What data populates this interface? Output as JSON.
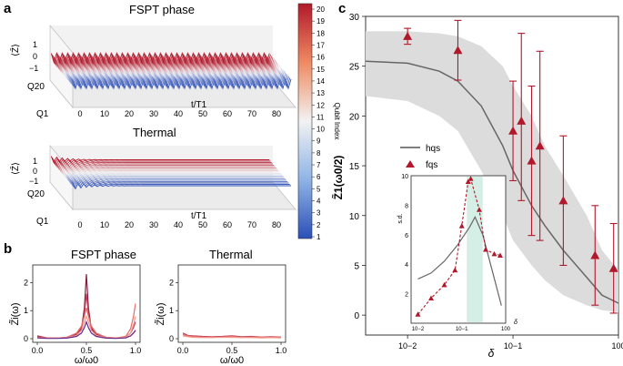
{
  "panels": {
    "a": {
      "letter": "a",
      "top_title": "FSPT phase",
      "bottom_title": "Thermal",
      "z_label": "⟨Z̄⟩",
      "q_top": "Q20",
      "q_bottom": "Q1",
      "t_label": "t/T1",
      "z_ticks": [
        "1",
        "0",
        "−1"
      ],
      "t_ticks": [
        "0",
        "10",
        "20",
        "30",
        "40",
        "50",
        "60",
        "70",
        "80"
      ]
    },
    "b": {
      "letter": "b",
      "left_title": "FSPT phase",
      "right_title": "Thermal",
      "ylabel": "Z̃i(ω)",
      "xlabel": "ω/ω0",
      "yticks": [
        "0",
        "1",
        "2"
      ],
      "xticks": [
        "0.0",
        "0.5",
        "1.0"
      ]
    },
    "colorbar": {
      "label": "Qubit Index",
      "ticks": [
        "20",
        "19",
        "18",
        "17",
        "16",
        "15",
        "14",
        "13",
        "12",
        "11",
        "10",
        "9",
        "8",
        "7",
        "6",
        "5",
        "4",
        "3",
        "2",
        "1"
      ],
      "color_high": "#b2182b",
      "color_mid": "#f2f2f2",
      "color_low": "#2c4fb8"
    },
    "c": {
      "letter": "c",
      "ylabel": "Z̃1(ω0/2)",
      "xlabel": "δ",
      "legend_line": "hqs",
      "legend_marker": "fqs",
      "yticks": [
        "0",
        "5",
        "10",
        "15",
        "20",
        "25",
        "30"
      ],
      "xticks": [
        "10−2",
        "10−1",
        "100"
      ],
      "inset": {
        "ylabel": "s.d.",
        "yticks": [
          "2",
          "4",
          "6",
          "8",
          "10"
        ],
        "xticks": [
          "10−2",
          "10−1",
          "100"
        ],
        "xlabel": "δ"
      }
    }
  },
  "chart_data": [
    {
      "panel": "c",
      "type": "line",
      "x_scale": "log",
      "xlim": [
        0.004,
        1.0
      ],
      "ylim": [
        -2,
        30
      ],
      "series": [
        {
          "name": "hqs",
          "x": [
            0.004,
            0.01,
            0.02,
            0.03,
            0.05,
            0.08,
            0.1,
            0.15,
            0.2,
            0.3,
            0.5,
            0.7,
            1.0
          ],
          "y": [
            25.5,
            25.3,
            24.5,
            23.5,
            21.0,
            17.0,
            14.5,
            11.0,
            9.0,
            6.5,
            3.8,
            2.0,
            1.2
          ],
          "band_upper": [
            28.5,
            28.5,
            28.3,
            28.0,
            27.0,
            25.0,
            23.0,
            20.0,
            17.0,
            14.0,
            10.0,
            6.5,
            4.5
          ],
          "band_lower": [
            22.0,
            21.5,
            20.0,
            18.5,
            14.5,
            10.0,
            7.5,
            5.0,
            3.5,
            2.0,
            1.0,
            0.5,
            0.3
          ]
        },
        {
          "name": "fqs",
          "x": [
            0.01,
            0.03,
            0.1,
            0.12,
            0.15,
            0.18,
            0.3,
            0.6,
            0.9
          ],
          "y": [
            28.0,
            26.6,
            18.5,
            19.5,
            15.5,
            17.0,
            11.5,
            6.0,
            4.7
          ],
          "err_low": [
            0.8,
            3.0,
            5.0,
            8.0,
            7.5,
            9.5,
            6.5,
            5.0,
            4.5
          ],
          "err_high": [
            0.8,
            3.0,
            5.0,
            8.8,
            7.5,
            9.5,
            6.5,
            5.0,
            4.5
          ]
        }
      ]
    },
    {
      "panel": "c-inset",
      "type": "line",
      "x_scale": "log",
      "xlim": [
        0.007,
        1.0
      ],
      "ylim": [
        0,
        10
      ],
      "shaded_x_range": [
        0.13,
        0.3
      ],
      "series": [
        {
          "name": "solid",
          "x": [
            0.01,
            0.02,
            0.04,
            0.08,
            0.15,
            0.2,
            0.3,
            0.5,
            0.8
          ],
          "y": [
            3.0,
            3.4,
            4.2,
            5.3,
            6.5,
            7.2,
            6.0,
            3.5,
            1.2
          ]
        },
        {
          "name": "dashed",
          "x": [
            0.01,
            0.02,
            0.04,
            0.07,
            0.1,
            0.14,
            0.16,
            0.25,
            0.35,
            0.55,
            0.75
          ],
          "y": [
            0.6,
            1.7,
            2.6,
            3.6,
            6.6,
            9.6,
            9.8,
            7.7,
            5.0,
            4.7,
            4.6
          ]
        }
      ]
    },
    {
      "panel": "b-left",
      "type": "line",
      "xlim": [
        0,
        1
      ],
      "ylim": [
        0,
        2.5
      ],
      "x": [
        0.0,
        0.1,
        0.2,
        0.3,
        0.4,
        0.45,
        0.48,
        0.5,
        0.52,
        0.55,
        0.6,
        0.7,
        0.8,
        0.9,
        0.95,
        0.98,
        1.0
      ],
      "series": [
        {
          "color": "#8b1a3a",
          "values": [
            0.08,
            0.02,
            0.02,
            0.04,
            0.15,
            0.35,
            1.1,
            2.3,
            1.1,
            0.35,
            0.15,
            0.04,
            0.02,
            0.04,
            0.1,
            0.2,
            0.3
          ]
        },
        {
          "color": "#c23b5a",
          "values": [
            0.1,
            0.03,
            0.02,
            0.05,
            0.18,
            0.4,
            0.9,
            1.6,
            0.9,
            0.4,
            0.18,
            0.05,
            0.03,
            0.06,
            0.2,
            0.4,
            0.6
          ]
        },
        {
          "color": "#e2706a",
          "values": [
            0.05,
            0.02,
            0.02,
            0.05,
            0.2,
            0.45,
            0.8,
            1.1,
            0.8,
            0.45,
            0.2,
            0.05,
            0.02,
            0.08,
            0.35,
            0.8,
            1.25
          ]
        },
        {
          "color": "#f29a8c",
          "values": [
            0.04,
            0.02,
            0.02,
            0.03,
            0.12,
            0.3,
            0.6,
            0.8,
            0.6,
            0.3,
            0.12,
            0.03,
            0.02,
            0.05,
            0.2,
            0.5,
            0.8
          ]
        },
        {
          "color": "#6b2b8a",
          "values": [
            0.03,
            0.01,
            0.01,
            0.02,
            0.08,
            0.2,
            0.4,
            0.6,
            0.4,
            0.2,
            0.08,
            0.02,
            0.01,
            0.03,
            0.1,
            0.2,
            0.3
          ]
        }
      ]
    },
    {
      "panel": "b-right",
      "type": "line",
      "xlim": [
        0,
        1
      ],
      "ylim": [
        0,
        2.5
      ],
      "x": [
        0.0,
        0.05,
        0.1,
        0.2,
        0.3,
        0.4,
        0.5,
        0.6,
        0.7,
        0.8,
        0.9,
        1.0
      ],
      "series": [
        {
          "color": "#c23b5a",
          "values": [
            0.2,
            0.12,
            0.1,
            0.08,
            0.07,
            0.08,
            0.1,
            0.07,
            0.08,
            0.06,
            0.07,
            0.06
          ]
        },
        {
          "color": "#e2706a",
          "values": [
            0.15,
            0.1,
            0.08,
            0.06,
            0.05,
            0.06,
            0.08,
            0.05,
            0.06,
            0.05,
            0.05,
            0.05
          ]
        },
        {
          "color": "#f29a8c",
          "values": [
            0.1,
            0.07,
            0.05,
            0.04,
            0.04,
            0.05,
            0.05,
            0.04,
            0.04,
            0.03,
            0.04,
            0.03
          ]
        }
      ]
    }
  ]
}
